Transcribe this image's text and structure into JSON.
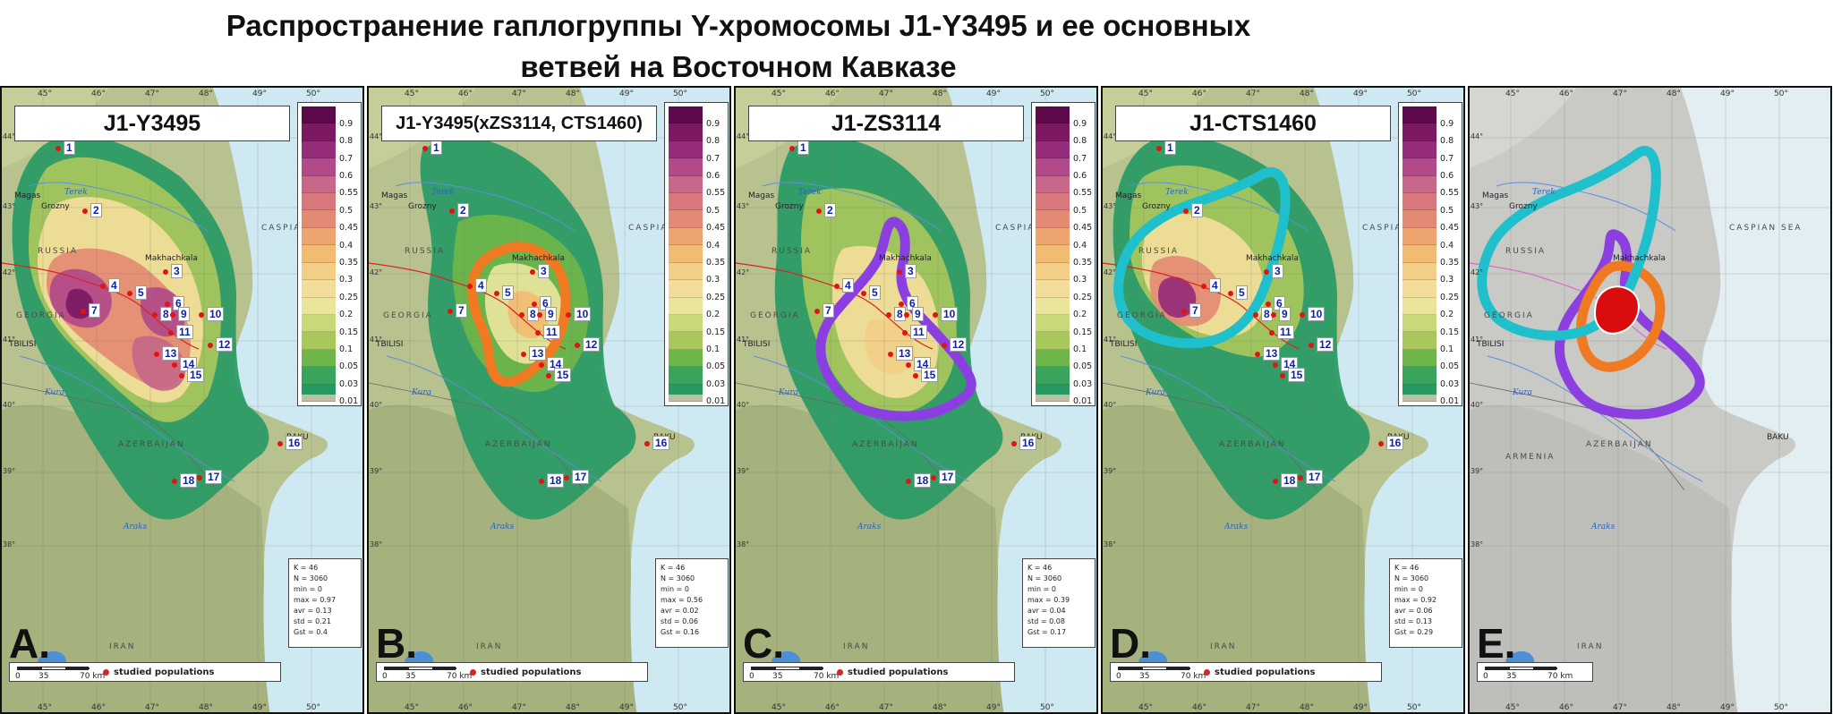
{
  "title": {
    "line1": "Распространение гаплогруппы Y-хромосомы J1-Y3495 и ее основных",
    "line2": "ветвей на Восточном Кавказе"
  },
  "common": {
    "lon_labels": [
      "45°",
      "46°",
      "47°",
      "48°",
      "49°",
      "50°"
    ],
    "lat_labels": [
      "44°",
      "43°",
      "42°",
      "41°",
      "40°",
      "39°",
      "38°"
    ],
    "scale": {
      "t0": "0",
      "t1": "35",
      "t2": "70 km"
    },
    "legend_text": "studied populations",
    "legend_values": [
      "0.9",
      "0.8",
      "0.7",
      "0.6",
      "0.55",
      "0.5",
      "0.45",
      "0.4",
      "0.35",
      "0.3",
      "0.25",
      "0.2",
      "0.15",
      "0.1",
      "0.05",
      "0.03",
      "0.01"
    ],
    "legend_colors": [
      "#5c0a4a",
      "#7b1a63",
      "#952c7a",
      "#b24a8a",
      "#c86888",
      "#d8787a",
      "#e48a72",
      "#eda46e",
      "#f2bb72",
      "#f3ce86",
      "#f2dd9a",
      "#e9e69c",
      "#c9d97a",
      "#a8c85c",
      "#6fb64a",
      "#3aa45c",
      "#279a64"
    ],
    "places": {
      "magas": "Magas",
      "grozny": "Grozny",
      "makhachkala": "Makhachkala",
      "tbilisi": "TBILISI",
      "baku": "BAKU",
      "caspian": "CASPIAN SEA",
      "russia": "RUSSIA",
      "georgia": "GEORGIA",
      "azerbaijan": "AZERBAIJAN",
      "armenia": "ARMENIA",
      "iran": "IRAN",
      "terek": "Terek",
      "kura": "Kura",
      "araks": "Araks"
    },
    "populations": [
      "1",
      "2",
      "3",
      "4",
      "5",
      "6",
      "7",
      "8",
      "9",
      "10",
      "11",
      "12",
      "13",
      "14",
      "15",
      "16",
      "17",
      "18"
    ]
  },
  "panels": [
    {
      "letter": "A.",
      "title": "J1-Y3495",
      "stats": [
        "K = 46",
        "N = 3060",
        "min = 0",
        "max = 0.97",
        "avr = 0.13",
        "std = 0.21",
        "Gst = 0.4"
      ]
    },
    {
      "letter": "B.",
      "title": "J1-Y3495(xZS3114, CTS1460)",
      "stats": [
        "K = 46",
        "N = 3060",
        "min = 0",
        "max = 0.56",
        "avr = 0.02",
        "std = 0.06",
        "Gst = 0.16"
      ]
    },
    {
      "letter": "C.",
      "title": "J1-ZS3114",
      "stats": [
        "K = 46",
        "N = 3060",
        "min = 0",
        "max = 0.39",
        "avr = 0.04",
        "std = 0.08",
        "Gst = 0.17"
      ]
    },
    {
      "letter": "D.",
      "title": "J1-CTS1460",
      "stats": [
        "K = 46",
        "N = 3060",
        "min = 0",
        "max = 0.92",
        "avr = 0.06",
        "std = 0.13",
        "Gst = 0.29"
      ]
    },
    {
      "letter": "E.",
      "title": "",
      "stats": []
    }
  ]
}
